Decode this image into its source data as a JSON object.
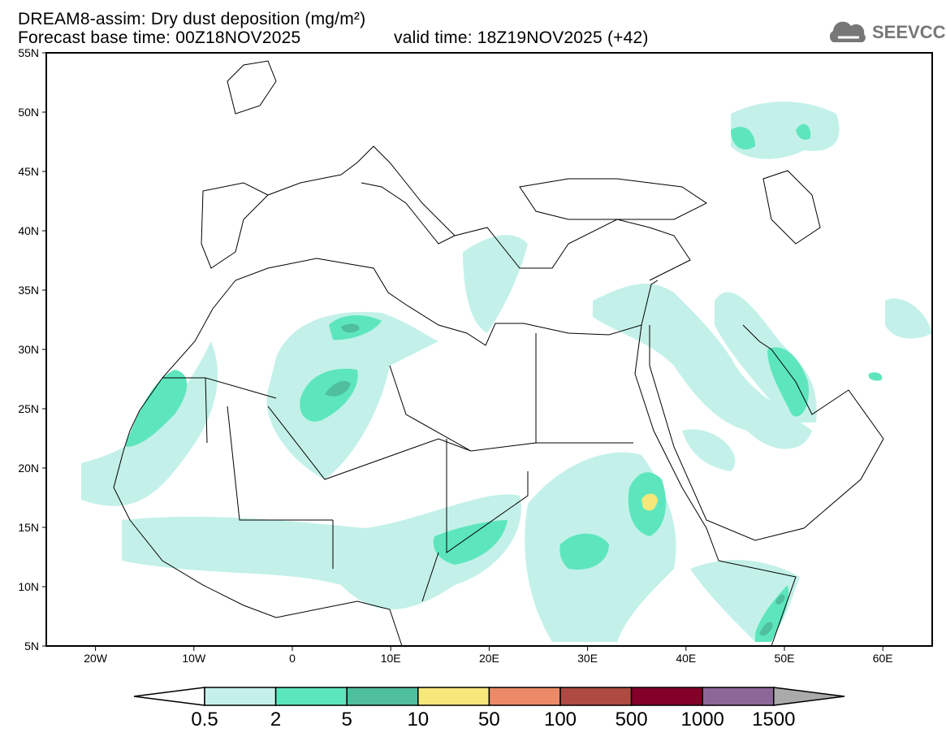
{
  "header": {
    "title": "DREAM8-assim: Dry dust deposition (mg/m²)",
    "base_time": "Forecast base time: 00Z18NOV2025",
    "valid_time": "valid time: 18Z19NOV2025 (+42)"
  },
  "logo": {
    "text": "SEEVCCC",
    "icon": "cloud-icon"
  },
  "map": {
    "lat_labels": [
      "55N",
      "50N",
      "45N",
      "40N",
      "35N",
      "30N",
      "25N",
      "20N",
      "15N",
      "10N",
      "5N"
    ],
    "lon_labels": [
      "20W",
      "10W",
      "0",
      "10E",
      "20E",
      "30E",
      "40E",
      "50E",
      "60E"
    ]
  },
  "colorbar": {
    "labels": [
      "0.5",
      "2",
      "5",
      "10",
      "50",
      "100",
      "500",
      "1000",
      "1500"
    ],
    "colors": [
      "#c3f1e9",
      "#5de6be",
      "#50bf9e",
      "#f6e77a",
      "#ec8a68",
      "#ad4a41",
      "#840028",
      "#8e6799"
    ],
    "over_color": "#aaaaaa",
    "under_color": "#ffffff"
  }
}
